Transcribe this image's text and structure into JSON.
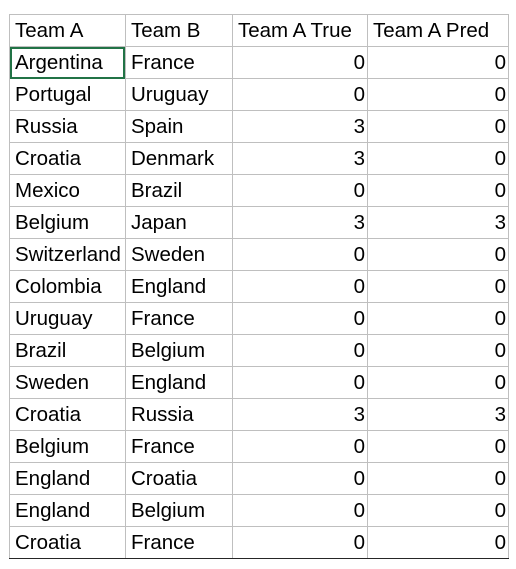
{
  "sheet": {
    "headers": [
      "Team A",
      "Team B",
      "Team A True",
      "Team A Pred"
    ],
    "rows": [
      [
        "Argentina",
        "France",
        "0",
        "0"
      ],
      [
        "Portugal",
        "Uruguay",
        "0",
        "0"
      ],
      [
        "Russia",
        "Spain",
        "3",
        "0"
      ],
      [
        "Croatia",
        "Denmark",
        "3",
        "0"
      ],
      [
        "Mexico",
        "Brazil",
        "0",
        "0"
      ],
      [
        "Belgium",
        "Japan",
        "3",
        "3"
      ],
      [
        "Switzerland",
        "Sweden",
        "0",
        "0"
      ],
      [
        "Colombia",
        "England",
        "0",
        "0"
      ],
      [
        "Uruguay",
        "France",
        "0",
        "0"
      ],
      [
        "Brazil",
        "Belgium",
        "0",
        "0"
      ],
      [
        "Sweden",
        "England",
        "0",
        "0"
      ],
      [
        "Croatia",
        "Russia",
        "3",
        "3"
      ],
      [
        "Belgium",
        "France",
        "0",
        "0"
      ],
      [
        "England",
        "Croatia",
        "0",
        "0"
      ],
      [
        "England",
        "Belgium",
        "0",
        "0"
      ],
      [
        "Croatia",
        "France",
        "0",
        "0"
      ]
    ],
    "colors": {
      "gridline": "#bfbfbf",
      "active_cell_border": "#217346"
    }
  }
}
